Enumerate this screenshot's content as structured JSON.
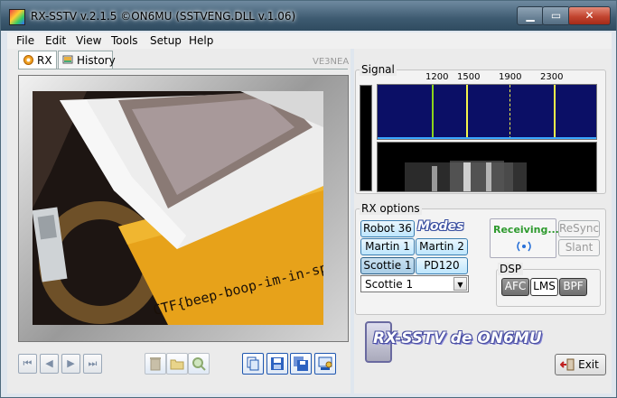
{
  "window": {
    "title": "RX-SSTV v.2.1.5 ©ON6MU (SSTVENG.DLL v.1.06)",
    "min_glyph": "▁",
    "max_glyph": "▭",
    "close_glyph": "✕"
  },
  "menu": [
    "File",
    "Edit",
    "View",
    "Tools",
    "Setup",
    "Help"
  ],
  "tabs": {
    "rx": "RX",
    "history": "History"
  },
  "credit": "VE3NEA",
  "image_text": "CTF{beep-boop-im-in-space}",
  "signal": {
    "label": "Signal",
    "freq_labels": [
      "1200",
      "1500",
      "1900",
      "2300"
    ]
  },
  "rx_options": {
    "label": "RX options",
    "modes_title": "Modes",
    "mode_buttons": [
      "Robot 36",
      "Martin 1",
      "Martin 2",
      "Scottie 1",
      "PD120"
    ],
    "selected_mode": "Scottie 1",
    "status": "Receiving...",
    "resync": "ReSync",
    "slant": "Slant"
  },
  "dsp": {
    "label": "DSP",
    "afc": "AFC",
    "lms": "LMS",
    "bpf": "BPF"
  },
  "logo_text": "RX-SSTV de ON6MU",
  "exit_label": "Exit",
  "colors": {
    "status_green": "#2e9a2e",
    "waterfall_bg": "#0b0f66",
    "marker_green": "#8bd31a",
    "marker_yellow": "#f4f44a"
  }
}
